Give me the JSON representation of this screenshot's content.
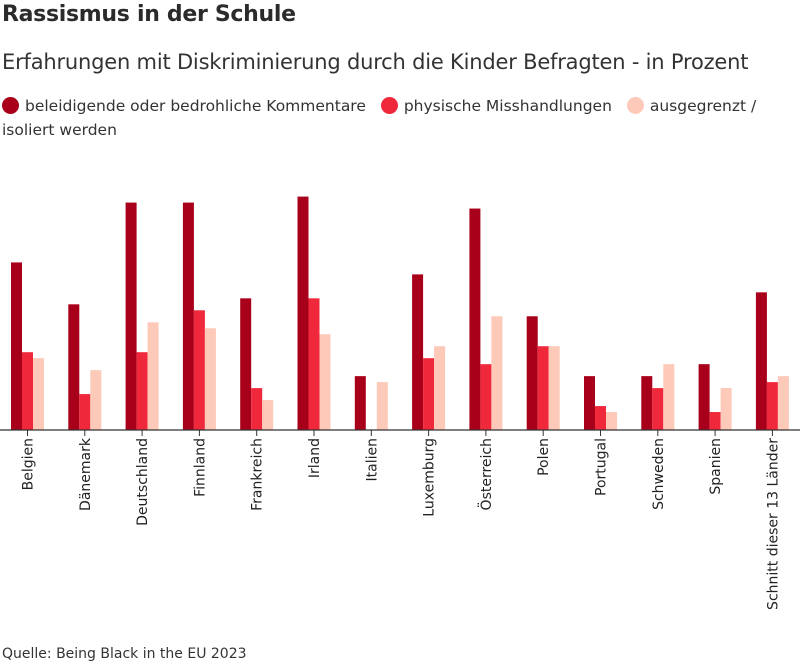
{
  "chart_data": {
    "type": "bar",
    "title": "Rassismus in der Schule",
    "subtitle": "Erfahrungen mit Diskriminierung durch die Kinder Befragten - in Prozent",
    "source": "Quelle: Being Black in the EU 2023",
    "categories": [
      "Belgien",
      "Dänemark",
      "Deutschland",
      "Finnland",
      "Frankreich",
      "Irland",
      "Italien",
      "Luxemburg",
      "Österreich",
      "Polen",
      "Portugal",
      "Schweden",
      "Spanien",
      "Schnitt dieser 13 Länder"
    ],
    "series": [
      {
        "name": "beleidigende oder bedrohliche Kommentare",
        "color": "#a8001a",
        "values": [
          28,
          21,
          38,
          38,
          22,
          39,
          9,
          26,
          37,
          19,
          9,
          9,
          11,
          23
        ]
      },
      {
        "name": "physische Misshandlungen",
        "color": "#f0283c",
        "values": [
          13,
          6,
          13,
          20,
          7,
          22,
          0,
          12,
          11,
          14,
          4,
          7,
          3,
          8
        ]
      },
      {
        "name": "ausgegrenzt / isoliert werden",
        "color": "#fdc9b8",
        "values": [
          12,
          10,
          18,
          17,
          5,
          16,
          8,
          14,
          19,
          14,
          3,
          11,
          7,
          9
        ]
      }
    ],
    "ylim": [
      0,
      40
    ],
    "grid": false,
    "legend_position": "top"
  }
}
